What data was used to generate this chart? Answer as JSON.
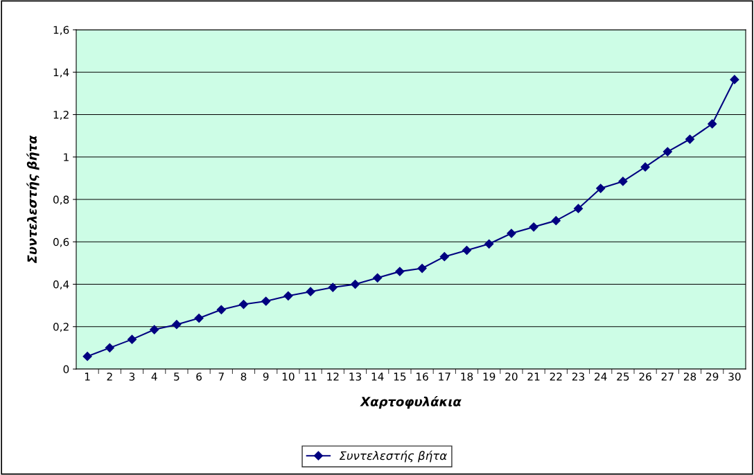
{
  "chart_data": {
    "type": "line",
    "xlabel": "Χαρτοφυλάκια",
    "ylabel": "Συντελεστής βήτα",
    "categories": [
      "1",
      "2",
      "3",
      "4",
      "5",
      "6",
      "7",
      "8",
      "9",
      "10",
      "11",
      "12",
      "13",
      "14",
      "15",
      "16",
      "17",
      "18",
      "19",
      "20",
      "21",
      "22",
      "23",
      "24",
      "25",
      "26",
      "27",
      "28",
      "29",
      "30"
    ],
    "series": [
      {
        "name": "Συντελεστής βήτα",
        "color": "#000080",
        "values": [
          0.06,
          0.1,
          0.14,
          0.186,
          0.21,
          0.24,
          0.28,
          0.305,
          0.32,
          0.345,
          0.365,
          0.385,
          0.4,
          0.43,
          0.46,
          0.475,
          0.53,
          0.56,
          0.59,
          0.64,
          0.67,
          0.7,
          0.757,
          0.852,
          0.885,
          0.953,
          1.025,
          1.084,
          1.156,
          1.365
        ]
      }
    ],
    "ylim": [
      0,
      1.6
    ],
    "yticks": [
      {
        "value": 0,
        "label": "0"
      },
      {
        "value": 0.2,
        "label": "0,2"
      },
      {
        "value": 0.4,
        "label": "0,4"
      },
      {
        "value": 0.6,
        "label": "0,6"
      },
      {
        "value": 0.8,
        "label": "0,8"
      },
      {
        "value": 1,
        "label": "1"
      },
      {
        "value": 1.2,
        "label": "1,2"
      },
      {
        "value": 1.4,
        "label": "1,4"
      },
      {
        "value": 1.6,
        "label": "1,6"
      }
    ],
    "grid": "y",
    "legend": "bottom",
    "marker": "diamond",
    "line_style": "solid"
  }
}
